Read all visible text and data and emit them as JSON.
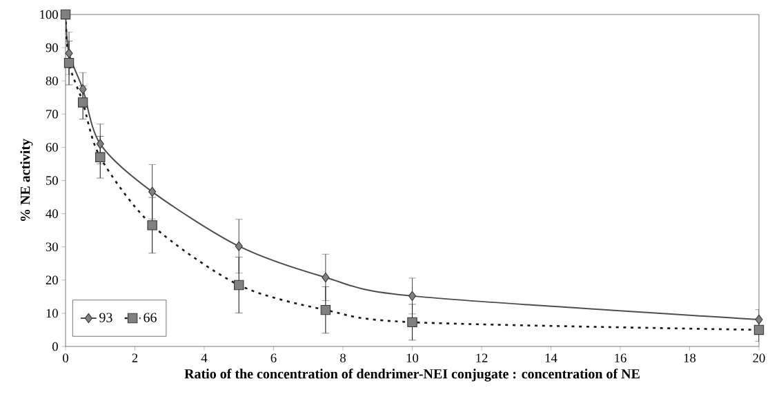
{
  "chart_data": {
    "type": "line",
    "xlabel": "Ratio of the concentration of dendrimer-NEI conjugate : concentration of NE",
    "ylabel": "% NE activity",
    "x": [
      0,
      0.1,
      0.5,
      1,
      2.5,
      5,
      7.5,
      10,
      20
    ],
    "series": [
      {
        "name": "93",
        "color": "#4d4d4d",
        "marker": "diamond",
        "line_style": "solid",
        "values": [
          100,
          88.3,
          77.5,
          61,
          46.6,
          30.2,
          20.8,
          15.2,
          8.1
        ],
        "errors": [
          null,
          6.4,
          5,
          6,
          8.2,
          8.1,
          7,
          5.4,
          3
        ]
      },
      {
        "name": "66",
        "color": "#1a1a1a",
        "marker": "square",
        "line_style": "dashed",
        "values": [
          100,
          85.4,
          73.5,
          57,
          36.5,
          18.5,
          11,
          7.3,
          5
        ],
        "errors": [
          null,
          6.6,
          5,
          6.3,
          8.4,
          8.4,
          7,
          5.4,
          3.5
        ]
      }
    ],
    "xlim": [
      0,
      20
    ],
    "xticks": [
      0,
      2,
      4,
      6,
      8,
      10,
      12,
      14,
      16,
      18,
      20
    ],
    "ylim": [
      0,
      100
    ],
    "yticks": [
      0,
      10,
      20,
      30,
      40,
      50,
      60,
      70,
      80,
      90,
      100
    ],
    "grid": false,
    "legend": "bottom left"
  }
}
